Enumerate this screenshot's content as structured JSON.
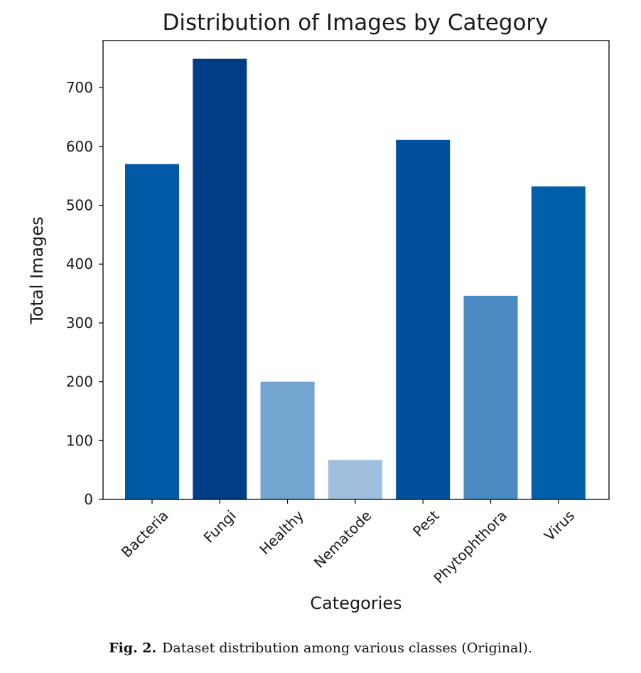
{
  "chart_data": {
    "type": "bar",
    "title": "Distribution of Images by Category",
    "xlabel": "Categories",
    "ylabel": "Total Images",
    "categories": [
      "Bacteria",
      "Fungi",
      "Healthy",
      "Nematode",
      "Pest",
      "Phytophthora",
      "Virus"
    ],
    "values": [
      570,
      749,
      200,
      67,
      611,
      346,
      532
    ],
    "bar_colors": [
      "#0059a4",
      "#003d86",
      "#73a5d1",
      "#9ec0de",
      "#00509c",
      "#4a8ac2",
      "#005fa8"
    ],
    "ylim": [
      0,
      780
    ],
    "yticks": [
      0,
      100,
      200,
      300,
      400,
      500,
      600,
      700
    ],
    "grid": false,
    "legend": "none"
  },
  "caption": {
    "label": "Fig. 2.",
    "text": "Dataset distribution among various classes (Original)."
  }
}
